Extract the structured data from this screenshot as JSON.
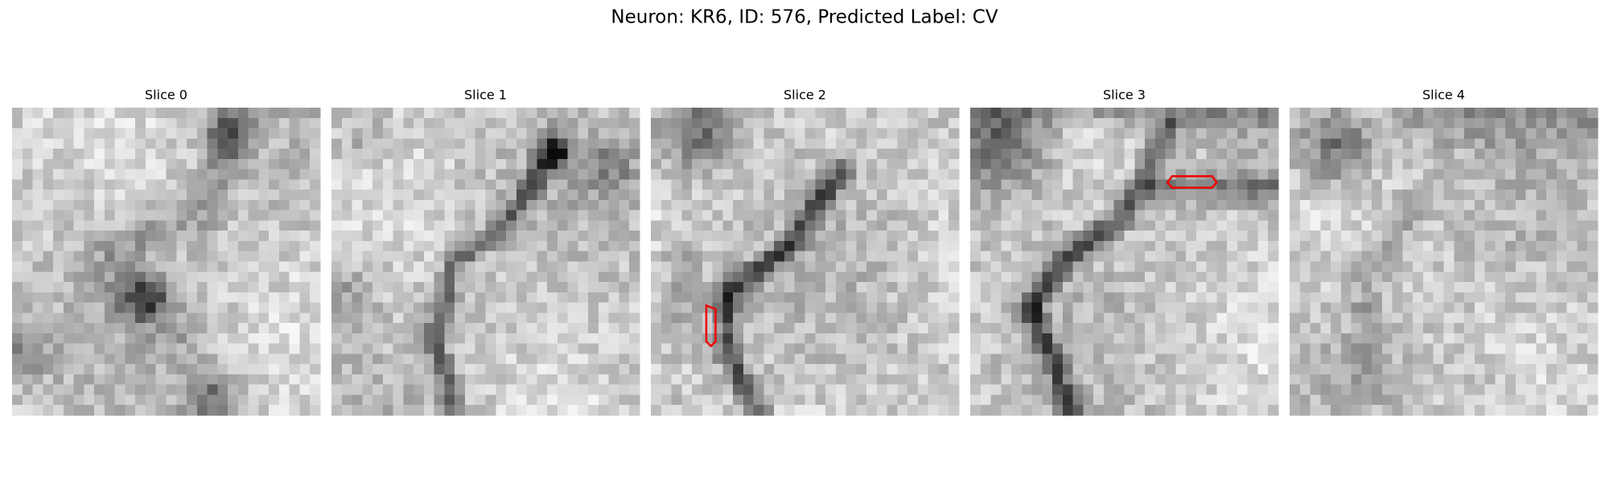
{
  "figure": {
    "title": "Neuron: KR6, ID: 576, Predicted Label: CV",
    "panels": [
      {
        "title": "Slice 0"
      },
      {
        "title": "Slice 1"
      },
      {
        "title": "Slice 2"
      },
      {
        "title": "Slice 3"
      },
      {
        "title": "Slice 4"
      }
    ]
  }
}
